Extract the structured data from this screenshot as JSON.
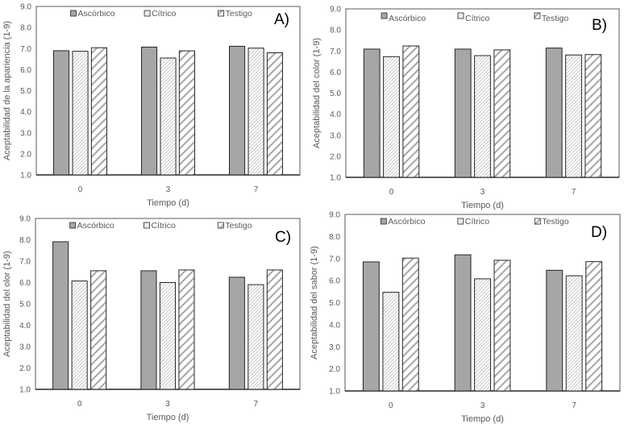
{
  "figure": {
    "panel_labels": [
      "A)",
      "B)",
      "C)",
      "D)"
    ]
  },
  "chart_data": [
    {
      "type": "bar",
      "panel": "A)",
      "title": "",
      "xlabel": "Tiempo (d)",
      "ylabel": "Aceptabilidad de la apariencia (1-9)",
      "categories": [
        "0",
        "3",
        "7"
      ],
      "ylim": [
        1.0,
        9.0
      ],
      "yticks": [
        "1.0",
        "2.0",
        "3.0",
        "4.0",
        "5.0",
        "6.0",
        "7.0",
        "8.0",
        "9.0"
      ],
      "grid": false,
      "legend_position": "top",
      "series": [
        {
          "name": "Ascórbico",
          "values": [
            6.9,
            7.07,
            7.11
          ]
        },
        {
          "name": "Cítrico",
          "values": [
            6.87,
            6.55,
            7.02
          ]
        },
        {
          "name": "Testigo",
          "values": [
            7.04,
            6.89,
            6.8
          ]
        }
      ]
    },
    {
      "type": "bar",
      "panel": "B)",
      "title": "",
      "xlabel": "Tiempo (d)",
      "ylabel": "Aceptabilidad del color (1-9)",
      "categories": [
        "0",
        "3",
        "7"
      ],
      "ylim": [
        1.0,
        9.0
      ],
      "yticks": [
        "1.0",
        "2.0",
        "3.0",
        "4.0",
        "5.0",
        "6.0",
        "7.0",
        "8.0",
        "9.0"
      ],
      "grid": false,
      "legend_position": "top",
      "series": [
        {
          "name": "Ascórbico",
          "values": [
            7.09,
            7.09,
            7.14
          ]
        },
        {
          "name": "Cítrico",
          "values": [
            6.73,
            6.78,
            6.81
          ]
        },
        {
          "name": "Testigo",
          "values": [
            7.24,
            7.05,
            6.83
          ]
        }
      ]
    },
    {
      "type": "bar",
      "panel": "C)",
      "title": "",
      "xlabel": "Tiempo (d)",
      "ylabel": "Aceptabilidad del olor (1-9)",
      "categories": [
        "0",
        "3",
        "7"
      ],
      "ylim": [
        1.0,
        9.0
      ],
      "yticks": [
        "1.0",
        "2.0",
        "3.0",
        "4.0",
        "5.0",
        "6.0",
        "7.0",
        "8.0",
        "9.0"
      ],
      "grid": false,
      "legend_position": "top",
      "series": [
        {
          "name": "Ascórbico",
          "values": [
            7.91,
            6.55,
            6.25
          ]
        },
        {
          "name": "Cítrico",
          "values": [
            6.07,
            6.0,
            5.9
          ]
        },
        {
          "name": "Testigo",
          "values": [
            6.55,
            6.59,
            6.59
          ]
        }
      ]
    },
    {
      "type": "bar",
      "panel": "D)",
      "title": "",
      "xlabel": "Tiempo (d)",
      "ylabel": "Aceptabilidad del sabor (1-9)",
      "categories": [
        "0",
        "3",
        "7"
      ],
      "ylim": [
        1.0,
        9.0
      ],
      "yticks": [
        "1.0",
        "2.0",
        "3.0",
        "4.0",
        "5.0",
        "6.0",
        "7.0",
        "8.0",
        "9.0"
      ],
      "grid": false,
      "legend_position": "top",
      "series": [
        {
          "name": "Ascórbico",
          "values": [
            6.85,
            7.17,
            6.47
          ]
        },
        {
          "name": "Cítrico",
          "values": [
            5.47,
            6.08,
            6.22
          ]
        },
        {
          "name": "Testigo",
          "values": [
            7.02,
            6.92,
            6.86
          ]
        }
      ]
    }
  ],
  "styles": {
    "series_fills": [
      "solid-gray",
      "fine-diagonal-hatch",
      "wide-diagonal-hatch"
    ],
    "colors": {
      "solid": "#a6a6a6",
      "hatch_fine": "#a6a6a6",
      "hatch_wide": "#a6a6a6",
      "bar_outline": "#262626",
      "axis": "#595959",
      "text": "#595959",
      "panel_label": "#000000"
    }
  }
}
